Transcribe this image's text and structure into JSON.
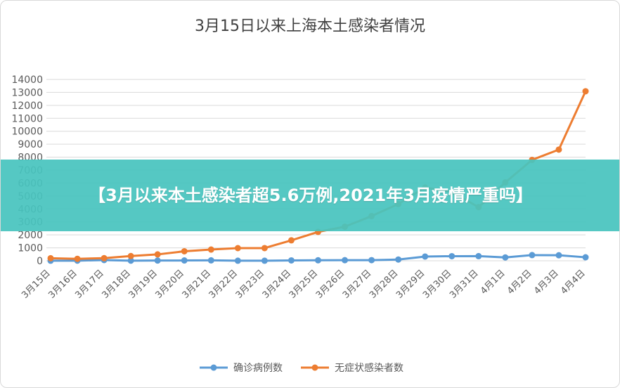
{
  "overlay": {
    "headline": "【3月以来本土感染者超5.6万例,2021年3月疫情严重吗】"
  },
  "chart_data": {
    "type": "line",
    "title": "3月15日以来上海本土感染者情况",
    "categories": [
      "3月15日",
      "3月16日",
      "3月17日",
      "3月18日",
      "3月19日",
      "3月20日",
      "3月21日",
      "3月22日",
      "3月23日",
      "3月24日",
      "3月25日",
      "3月26日",
      "3月27日",
      "3月28日",
      "3月29日",
      "3月30日",
      "3月31日",
      "4月1日",
      "4月2日",
      "4月3日",
      "4月4日"
    ],
    "series": [
      {
        "name": "确诊病例数",
        "color": "#5b9bd5",
        "values": [
          5,
          8,
          57,
          8,
          17,
          24,
          31,
          4,
          4,
          29,
          38,
          45,
          50,
          96,
          326,
          355,
          358,
          260,
          438,
          425,
          268
        ]
      },
      {
        "name": "无症状感染者数",
        "color": "#ed7d31",
        "values": [
          197,
          150,
          203,
          366,
          492,
          734,
          865,
          977,
          979,
          1580,
          2231,
          2631,
          3450,
          4381,
          5656,
          5298,
          4144,
          6051,
          7788,
          8581,
          13086
        ]
      }
    ],
    "ylim": [
      0,
      14000
    ],
    "yticks": [
      0,
      1000,
      2000,
      3000,
      4000,
      5000,
      6000,
      7000,
      8000,
      9000,
      10000,
      11000,
      12000,
      13000,
      14000
    ],
    "grid": true,
    "legend": "bottom"
  }
}
